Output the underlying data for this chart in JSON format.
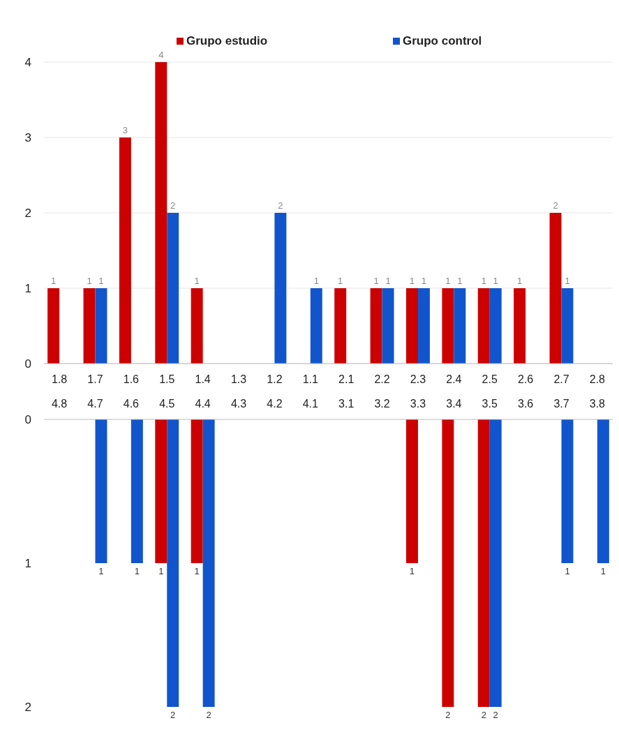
{
  "chart_data": [
    {
      "type": "bar",
      "categories": [
        "1.8",
        "1.7",
        "1.6",
        "1.5",
        "1.4",
        "1.3",
        "1.2",
        "1.1",
        "2.1",
        "2.2",
        "2.3",
        "2.4",
        "2.5",
        "2.6",
        "2.7",
        "2.8"
      ],
      "series": [
        {
          "name": "Grupo estudio",
          "color": "#cc0000",
          "values": [
            1,
            1,
            3,
            4,
            1,
            null,
            null,
            null,
            1,
            1,
            1,
            1,
            1,
            1,
            2,
            null
          ]
        },
        {
          "name": "Grupo control",
          "color": "#1155cc",
          "values": [
            null,
            1,
            null,
            2,
            null,
            null,
            2,
            1,
            null,
            1,
            1,
            1,
            1,
            null,
            1,
            null
          ]
        }
      ],
      "ylim": [
        0,
        4
      ],
      "yticks": [
        0,
        1,
        2,
        3,
        4
      ],
      "grid": "y",
      "legend": "top",
      "data_labels": true
    },
    {
      "type": "bar",
      "categories": [
        "4.8",
        "4.7",
        "4.6",
        "4.5",
        "4.4",
        "4.3",
        "4.2",
        "4.1",
        "3.1",
        "3.2",
        "3.3",
        "3.4",
        "3.5",
        "3.6",
        "3.7",
        "3.8"
      ],
      "series": [
        {
          "color": "#cc0000",
          "values": [
            null,
            null,
            null,
            1,
            1,
            null,
            null,
            null,
            null,
            null,
            1,
            2,
            2,
            null,
            null,
            null
          ]
        },
        {
          "color": "#1155cc",
          "values": [
            null,
            1,
            1,
            2,
            2,
            null,
            null,
            null,
            null,
            null,
            null,
            null,
            2,
            null,
            1,
            1
          ]
        }
      ],
      "ylim": [
        2,
        0
      ],
      "yticks": [
        0,
        1,
        2
      ],
      "data_labels": true
    }
  ]
}
